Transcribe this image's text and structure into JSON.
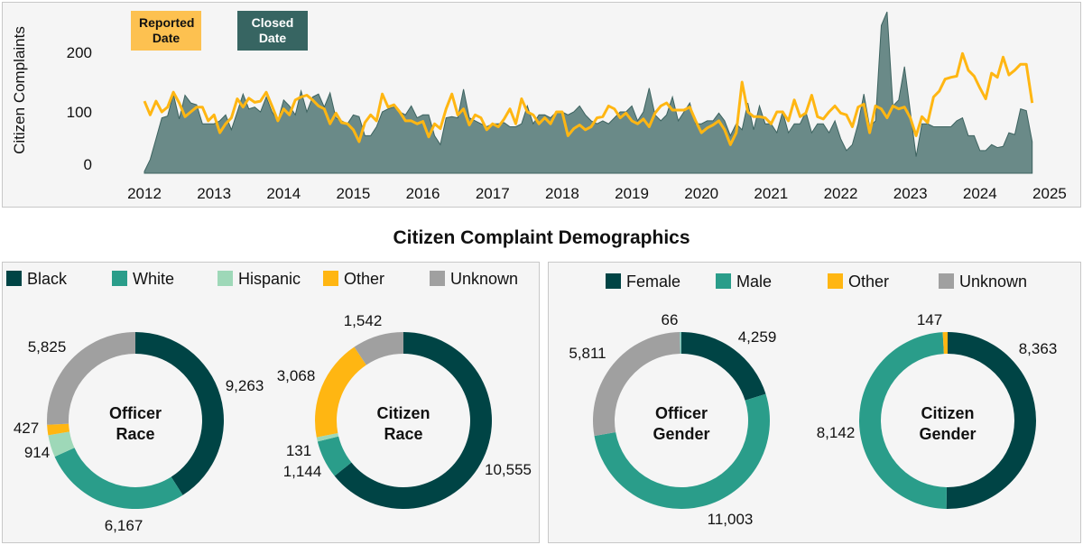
{
  "page_title": "Citizen Complaint Demographics",
  "colors": {
    "reported": "#ffb612",
    "reported_key": "#fdc150",
    "closed_fill": "#6a8a88",
    "closed_stroke": "#3d6360",
    "closed_key": "#376562",
    "black": "#004445",
    "white": "#2a9d8a",
    "hispanic": "#9ed8b8",
    "other": "#ffb612",
    "unknown": "#a0a0a0"
  },
  "chart_data": [
    {
      "type": "area+line",
      "ylabel": "Citizen Complaints",
      "xlabel": "",
      "xticks": [
        "2012",
        "2013",
        "2014",
        "2015",
        "2016",
        "2017",
        "2018",
        "2019",
        "2020",
        "2021",
        "2022",
        "2023",
        "2024",
        "2025"
      ],
      "yticks": [
        0,
        100,
        200
      ],
      "xlim": [
        "2012-01",
        "2025-01"
      ],
      "ylim": [
        0,
        280
      ],
      "grid": false,
      "x_start": "2012-01",
      "x_step": "month",
      "legend": [
        {
          "label": "Reported Date",
          "type": "line"
        },
        {
          "label": "Closed Date",
          "type": "area"
        }
      ],
      "series": [
        {
          "name": "Reported Date",
          "type": "line",
          "values": [
            118,
            95,
            118,
            100,
            108,
            133,
            115,
            92,
            100,
            108,
            108,
            85,
            95,
            65,
            80,
            90,
            122,
            108,
            123,
            116,
            118,
            133,
            110,
            85,
            105,
            95,
            120,
            125,
            128,
            120,
            110,
            105,
            80,
            98,
            82,
            80,
            70,
            50,
            82,
            95,
            85,
            130,
            108,
            112,
            100,
            85,
            85,
            80,
            84,
            58,
            80,
            72,
            105,
            130,
            95,
            105,
            78,
            95,
            90,
            70,
            80,
            75,
            88,
            105,
            80,
            122,
            100,
            95,
            80,
            90,
            80,
            100,
            100,
            60,
            72,
            78,
            70,
            75,
            90,
            92,
            110,
            105,
            90,
            98,
            85,
            80,
            88,
            75,
            98,
            110,
            115,
            103,
            103,
            103,
            108,
            85,
            65,
            73,
            78,
            85,
            70,
            45,
            65,
            150,
            100,
            92,
            92,
            90,
            80,
            100,
            100,
            85,
            120,
            92,
            98,
            128,
            92,
            88,
            100,
            110,
            98,
            95,
            75,
            108,
            113,
            65,
            110,
            105,
            90,
            110,
            105,
            108,
            90,
            60,
            92,
            82,
            125,
            135,
            155,
            158,
            160,
            198,
            170,
            160,
            140,
            122,
            165,
            158,
            192,
            162,
            170,
            180,
            180,
            115
          ]
        },
        {
          "name": "Closed Date",
          "type": "area",
          "values": [
            0,
            20,
            55,
            90,
            93,
            130,
            88,
            128,
            115,
            112,
            80,
            80,
            80,
            85,
            95,
            70,
            100,
            130,
            105,
            108,
            100,
            125,
            100,
            85,
            120,
            110,
            95,
            135,
            100,
            125,
            130,
            108,
            132,
            90,
            85,
            80,
            95,
            92,
            60,
            60,
            75,
            100,
            105,
            108,
            100,
            95,
            110,
            90,
            95,
            95,
            60,
            45,
            90,
            92,
            90,
            138,
            90,
            85,
            80,
            75,
            80,
            80,
            82,
            75,
            75,
            80,
            110,
            80,
            95,
            95,
            90,
            100,
            100,
            95,
            100,
            110,
            95,
            85,
            80,
            85,
            80,
            90,
            100,
            100,
            110,
            85,
            100,
            140,
            95,
            85,
            95,
            125,
            85,
            100,
            115,
            80,
            80,
            85,
            85,
            98,
            85,
            60,
            80,
            70,
            115,
            70,
            110,
            80,
            80,
            65,
            100,
            65,
            80,
            80,
            100,
            65,
            80,
            80,
            65,
            85,
            55,
            35,
            45,
            80,
            130,
            75,
            85,
            245,
            268,
            110,
            120,
            176,
            100,
            25,
            80,
            80,
            75,
            75,
            75,
            75,
            85,
            90,
            60,
            60,
            35,
            35,
            45,
            40,
            42,
            65,
            62,
            105,
            102,
            50
          ]
        }
      ]
    },
    {
      "type": "pie",
      "title": "Officer Race",
      "slices": [
        {
          "label": "Black",
          "value": 9263,
          "text": "9,263",
          "color": "#004445"
        },
        {
          "label": "White",
          "value": 6167,
          "text": "6,167",
          "color": "#2a9d8a"
        },
        {
          "label": "Hispanic",
          "value": 914,
          "text": "914",
          "color": "#9ed8b8"
        },
        {
          "label": "Other",
          "value": 427,
          "text": "427",
          "color": "#ffb612"
        },
        {
          "label": "Unknown",
          "value": 5825,
          "text": "5,825",
          "color": "#a0a0a0"
        }
      ]
    },
    {
      "type": "pie",
      "title": "Citizen Race",
      "slices": [
        {
          "label": "Black",
          "value": 10555,
          "text": "10,555",
          "color": "#004445"
        },
        {
          "label": "White",
          "value": 1144,
          "text": "1,144",
          "color": "#2a9d8a"
        },
        {
          "label": "Hispanic",
          "value": 131,
          "text": "131",
          "color": "#9ed8b8"
        },
        {
          "label": "Other",
          "value": 3068,
          "text": "3,068",
          "color": "#ffb612"
        },
        {
          "label": "Unknown",
          "value": 1542,
          "text": "1,542",
          "color": "#a0a0a0"
        }
      ]
    },
    {
      "type": "pie",
      "title": "Officer Gender",
      "slices": [
        {
          "label": "Female",
          "value": 4259,
          "text": "4,259",
          "color": "#004445"
        },
        {
          "label": "Male",
          "value": 11003,
          "text": "11,003",
          "color": "#2a9d8a"
        },
        {
          "label": "Unknown",
          "value": 5811,
          "text": "5,811",
          "color": "#a0a0a0"
        },
        {
          "label": "",
          "value": 66,
          "text": "66",
          "color": "#7fc4b8"
        }
      ]
    },
    {
      "type": "pie",
      "title": "Citizen Gender",
      "slices": [
        {
          "label": "Female",
          "value": 8363,
          "text": "8,363",
          "color": "#004445"
        },
        {
          "label": "Male",
          "value": 8142,
          "text": "8,142",
          "color": "#2a9d8a"
        },
        {
          "label": "Other",
          "value": 147,
          "text": "147",
          "color": "#ffb612"
        }
      ]
    }
  ],
  "race_legend": [
    {
      "label": "Black",
      "color": "#004445"
    },
    {
      "label": "White",
      "color": "#2a9d8a"
    },
    {
      "label": "Hispanic",
      "color": "#9ed8b8"
    },
    {
      "label": "Other",
      "color": "#ffb612"
    },
    {
      "label": "Unknown",
      "color": "#a0a0a0"
    }
  ],
  "gender_legend": [
    {
      "label": "Female",
      "color": "#004445"
    },
    {
      "label": "Male",
      "color": "#2a9d8a"
    },
    {
      "label": "Other",
      "color": "#ffb612"
    },
    {
      "label": "Unknown",
      "color": "#a0a0a0"
    }
  ],
  "donut_titles": [
    [
      "Officer",
      "Race"
    ],
    [
      "Citizen",
      "Race"
    ],
    [
      "Officer",
      "Gender"
    ],
    [
      "Citizen",
      "Gender"
    ]
  ]
}
